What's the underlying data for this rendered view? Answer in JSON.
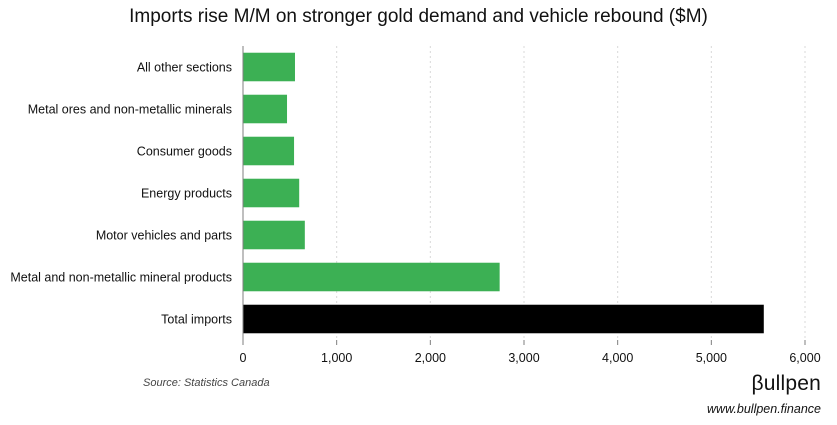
{
  "chart_data": {
    "type": "bar",
    "orientation": "horizontal",
    "title": "Imports rise M/M on stronger gold demand and vehicle rebound ($M)",
    "categories": [
      "All other sections",
      "Metal ores and non-metallic minerals",
      "Consumer goods",
      "Energy products",
      "Motor vehicles and parts",
      "Metal and non-metallic mineral products",
      "Total imports"
    ],
    "values": [
      555,
      470,
      545,
      600,
      660,
      2740,
      5560
    ],
    "bar_colors": [
      "#3cb054",
      "#3cb054",
      "#3cb054",
      "#3cb054",
      "#3cb054",
      "#3cb054",
      "#000000"
    ],
    "xlim": [
      0,
      6000
    ],
    "xticks": [
      0,
      1000,
      2000,
      3000,
      4000,
      5000,
      6000
    ],
    "xtick_labels": [
      "0",
      "1,000",
      "2,000",
      "3,000",
      "4,000",
      "5,000",
      "6,000"
    ],
    "xlabel": "",
    "ylabel": "",
    "grid": "vertical-dotted",
    "gridline_color": "#d9d9d9"
  },
  "footer": {
    "source": "Source: Statistics Canada",
    "brand": "βullpen",
    "url": "www.bullpen.finance"
  }
}
